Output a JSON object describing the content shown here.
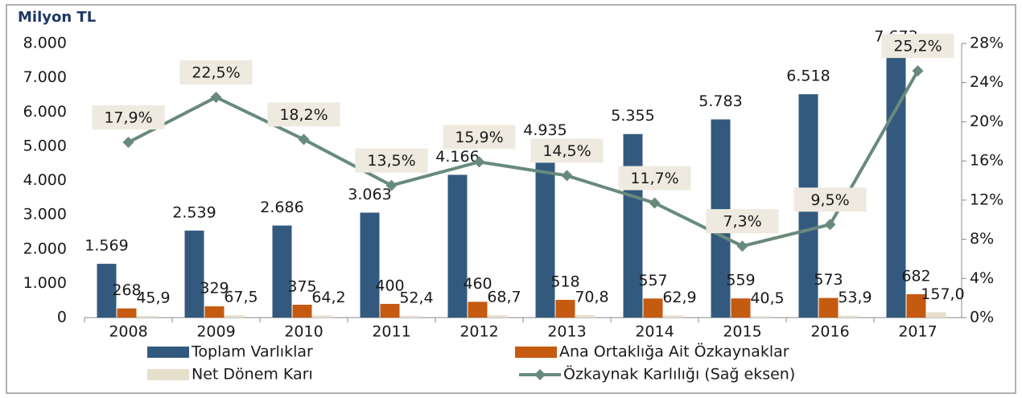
{
  "chart_data": {
    "type": "bar",
    "title": "Milyon TL",
    "categories": [
      "2008",
      "2009",
      "2010",
      "2011",
      "2012",
      "2013",
      "2014",
      "2015",
      "2016",
      "2017"
    ],
    "ylim": [
      0,
      8000
    ],
    "yticks": [
      0,
      {
        "value": 1000,
        "label": "1.000"
      },
      {
        "value": 2000,
        "label": "2.000"
      },
      {
        "value": 3000,
        "label": "3.000"
      },
      {
        "value": 4000,
        "label": "4.000"
      },
      {
        "value": 5000,
        "label": "5.000"
      },
      {
        "value": 6000,
        "label": "6.000"
      },
      {
        "value": 7000,
        "label": "7.000"
      },
      {
        "value": 8000,
        "label": "8.000"
      }
    ],
    "y2lim": [
      0,
      28
    ],
    "y2ticks": [
      {
        "value": 0,
        "label": "0%"
      },
      {
        "value": 4,
        "label": "4%"
      },
      {
        "value": 8,
        "label": "8%"
      },
      {
        "value": 12,
        "label": "12%"
      },
      {
        "value": 16,
        "label": "16%"
      },
      {
        "value": 20,
        "label": "20%"
      },
      {
        "value": 24,
        "label": "24%"
      },
      {
        "value": 28,
        "label": "28%"
      }
    ],
    "series": [
      {
        "name": "Toplam Varlıklar",
        "color": "#335a7e",
        "values": [
          1569,
          2539,
          2686,
          3063,
          4166,
          4935,
          5355,
          5783,
          6518,
          7673
        ],
        "value_labels": [
          "1.569",
          "2.539",
          "2.686",
          "3.063",
          "4.166",
          "4.935",
          "5.355",
          "5.783",
          "6.518",
          "7.673"
        ]
      },
      {
        "name": "Ana Ortaklığa Ait Özkaynaklar",
        "color": "#c55a11",
        "values": [
          268,
          329,
          375,
          400,
          460,
          518,
          557,
          559,
          573,
          682
        ]
      },
      {
        "name": "Net Dönem Karı",
        "color": "#e6dfcc",
        "values": [
          45.9,
          67.5,
          64.2,
          52.4,
          68.7,
          70.8,
          62.9,
          40.5,
          53.9,
          157.0
        ],
        "value_labels": [
          "45,9",
          "67,5",
          "64,2",
          "52,4",
          "68,7",
          "70,8",
          "62,9",
          "40,5",
          "53,9",
          "157,0"
        ]
      },
      {
        "name": "Özkaynak Karlılığı (Sağ eksen)",
        "color": "#688a7c",
        "axis": "y2",
        "type": "line",
        "values": [
          17.9,
          22.5,
          18.2,
          13.5,
          15.9,
          14.5,
          11.7,
          7.3,
          9.5,
          25.2
        ],
        "value_labels": [
          "17,9%",
          "22,5%",
          "18,2%",
          "13,5%",
          "15,9%",
          "14,5%",
          "11,7%",
          "7,3%",
          "9,5%",
          "25,2%"
        ]
      }
    ]
  }
}
